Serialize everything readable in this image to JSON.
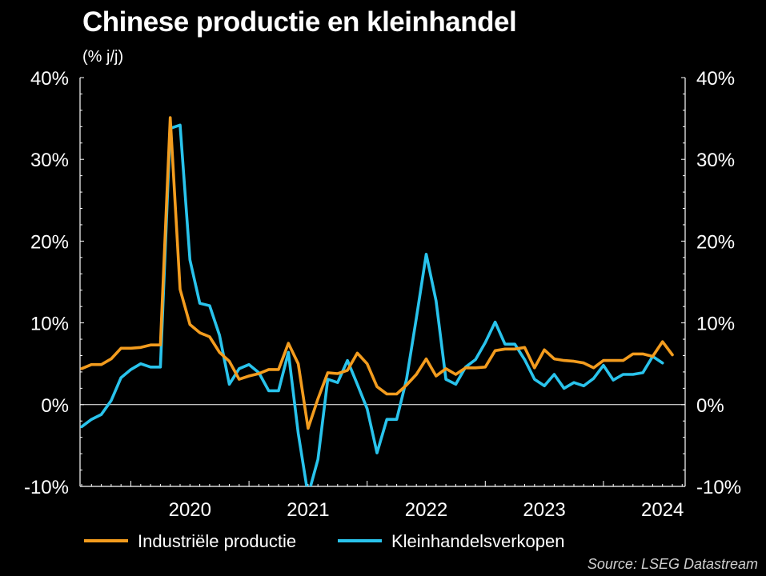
{
  "title": "Chinese productie en kleinhandel",
  "subtitle": "(% j/j)",
  "source": "Source: LSEG Datastream",
  "chart_data": {
    "type": "line",
    "ylim": [
      -10,
      40
    ],
    "y_ticks": [
      "40%",
      "30%",
      "20%",
      "10%",
      "0%",
      "-10%"
    ],
    "y_tick_values": [
      40,
      30,
      20,
      10,
      0,
      -10
    ],
    "x_tick_labels": [
      "2020",
      "2021",
      "2022",
      "2023",
      "2024"
    ],
    "x_tick_years": [
      2020,
      2021,
      2022,
      2023,
      2024
    ],
    "x_start": "2019-08",
    "grid": false,
    "legend_position": "bottom",
    "series": [
      {
        "name": "Industriële productie",
        "color": "#f39c1e",
        "values": [
          4.4,
          4.9,
          4.9,
          5.6,
          6.9,
          6.9,
          7.0,
          7.3,
          7.3,
          35.1,
          14.1,
          9.8,
          8.8,
          8.3,
          6.4,
          5.3,
          3.1,
          3.5,
          3.8,
          4.3,
          4.3,
          7.5,
          5.0,
          -2.9,
          0.7,
          3.9,
          3.8,
          4.2,
          6.3,
          5.0,
          2.2,
          1.3,
          1.3,
          2.4,
          3.7,
          5.6,
          3.5,
          4.4,
          3.7,
          4.5,
          4.5,
          4.6,
          6.6,
          6.8,
          6.8,
          7.0,
          4.5,
          6.7,
          5.6,
          5.4,
          5.3,
          5.1,
          4.5,
          5.4,
          5.4,
          5.4,
          6.2,
          6.2,
          5.9,
          7.7,
          6.1
        ],
        "months_start": "2019-08"
      },
      {
        "name": "Kleinhandelsverkopen",
        "color": "#29c3ec",
        "values": [
          -2.7,
          -1.8,
          -1.2,
          0.5,
          3.3,
          4.3,
          5.0,
          4.6,
          4.6,
          33.8,
          34.2,
          17.7,
          12.4,
          12.1,
          8.5,
          2.5,
          4.4,
          4.9,
          3.9,
          1.7,
          1.7,
          6.4,
          -3.5,
          -11.1,
          -6.7,
          3.1,
          2.7,
          5.4,
          2.5,
          -0.5,
          -5.9,
          -1.8,
          -1.8,
          3.1,
          10.6,
          18.4,
          12.7,
          3.1,
          2.5,
          4.6,
          5.5,
          7.6,
          10.1,
          7.4,
          7.4,
          5.5,
          3.1,
          2.3,
          3.7,
          2.0,
          2.7,
          2.3,
          3.2,
          4.8,
          3.0,
          3.7,
          3.7,
          3.9,
          5.9,
          5.1
        ],
        "months_start": "2019-08"
      }
    ]
  },
  "legend": {
    "items": [
      {
        "label": "Industriële productie",
        "color": "#f39c1e"
      },
      {
        "label": "Kleinhandelsverkopen",
        "color": "#29c3ec"
      }
    ]
  }
}
